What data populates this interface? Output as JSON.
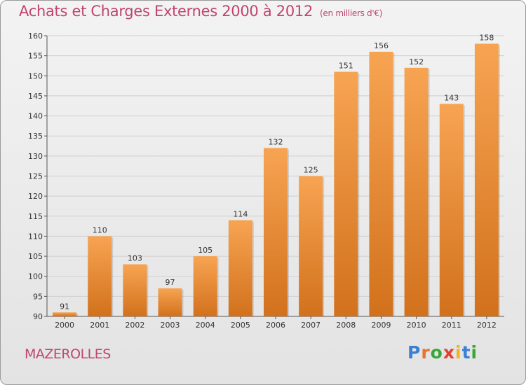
{
  "header": {
    "title": "Achats et Charges Externes 2000 à 2012",
    "unit": "(en milliers d'€)"
  },
  "footer": {
    "place": "MAZEROLLES"
  },
  "logo": {
    "text": "Proxiti",
    "letter_colors": [
      "#3a7fd5",
      "#e8732a",
      "#3aa63a",
      "#e0412f",
      "#f0b41e",
      "#3a7fd5",
      "#3aa63a"
    ]
  },
  "colors": {
    "bar_top": "#f7a452",
    "bar_bottom": "#d2711c",
    "grid": "#cfcfcf",
    "accent": "#c0446e"
  },
  "chart_data": {
    "type": "bar",
    "title": "Achats et Charges Externes 2000 à 2012",
    "subtitle": "(en milliers d'€)",
    "xlabel": "",
    "ylabel": "",
    "categories": [
      "2000",
      "2001",
      "2002",
      "2003",
      "2004",
      "2005",
      "2006",
      "2007",
      "2008",
      "2009",
      "2010",
      "2011",
      "2012"
    ],
    "values": [
      91,
      110,
      103,
      97,
      105,
      114,
      132,
      125,
      151,
      156,
      152,
      143,
      158
    ],
    "ylim": [
      90,
      160
    ],
    "yticks": [
      90,
      95,
      100,
      105,
      110,
      115,
      120,
      125,
      130,
      135,
      140,
      145,
      150,
      155,
      160
    ],
    "grid": true,
    "legend": "none"
  }
}
